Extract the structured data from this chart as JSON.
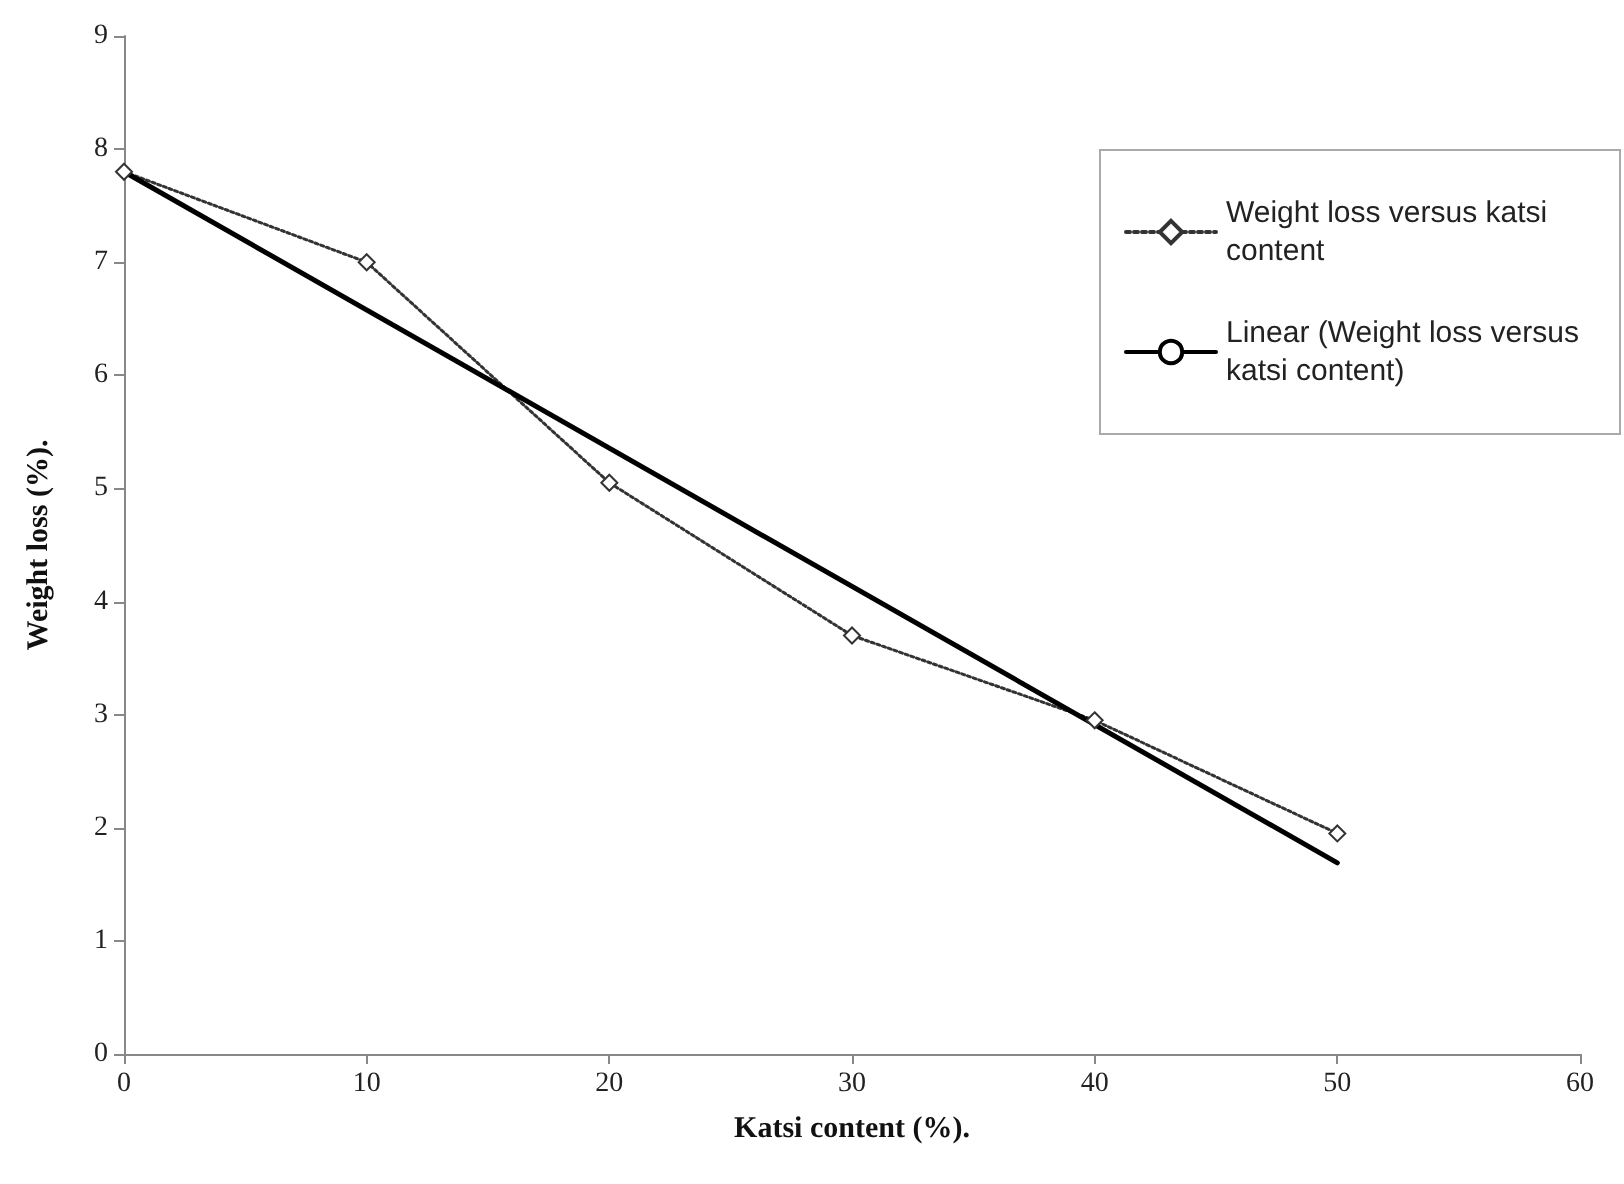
{
  "chart_data": {
    "type": "line",
    "xlabel": "Katsi content (%).",
    "ylabel": "Weight loss (%).",
    "x": [
      0,
      10,
      20,
      30,
      40,
      50
    ],
    "series": [
      {
        "name": "Weight loss versus katsi content",
        "color": "#333333",
        "values": [
          7.8,
          7.0,
          5.05,
          3.7,
          2.95,
          1.95
        ],
        "marker": "diamond",
        "line_style": "dotted"
      },
      {
        "name": "Linear (Weight loss versus katsi content)",
        "color": "#000000",
        "x": [
          0,
          50
        ],
        "values": [
          7.8,
          1.69
        ],
        "marker": "none",
        "line_style": "solid"
      }
    ],
    "xlim": [
      0,
      60
    ],
    "xticks": [
      0,
      10,
      20,
      30,
      40,
      50,
      60
    ],
    "ylim": [
      0,
      9
    ],
    "yticks": [
      0,
      1,
      2,
      3,
      4,
      5,
      6,
      7,
      8,
      9
    ],
    "grid": false,
    "legend": "top right"
  }
}
